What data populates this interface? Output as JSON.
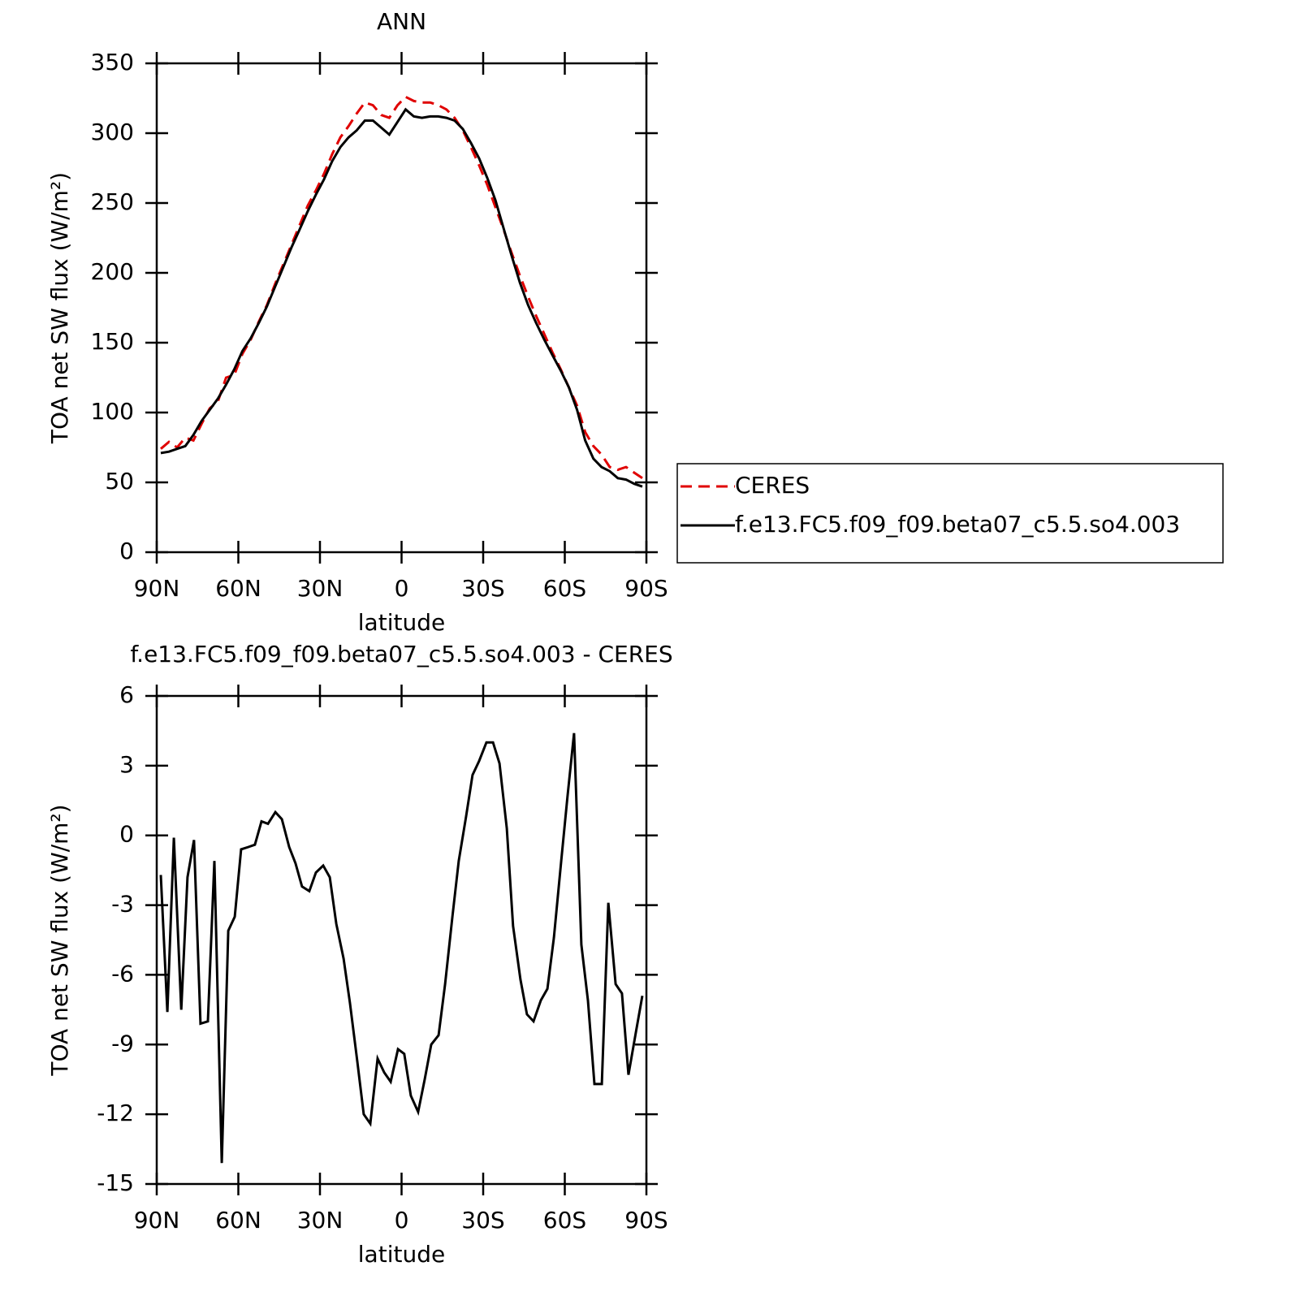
{
  "chart_data": [
    {
      "type": "line",
      "title": "ANN",
      "xlabel": "latitude",
      "ylabel": "TOA net SW flux (W/m²)",
      "xlim": [
        90,
        -90
      ],
      "xticks": [
        {
          "value": 90,
          "label": "90N"
        },
        {
          "value": 60,
          "label": "60N"
        },
        {
          "value": 30,
          "label": "30N"
        },
        0,
        {
          "value": -30,
          "label": "30S"
        },
        {
          "value": -60,
          "label": "60S"
        },
        {
          "value": -90,
          "label": "90S"
        }
      ],
      "ylim": [
        0,
        350
      ],
      "yticks": [
        0,
        50,
        100,
        150,
        200,
        250,
        300,
        350
      ],
      "legend": "right",
      "x": [
        88.5,
        85.5,
        82.5,
        79.5,
        76.5,
        73.5,
        70.5,
        67.5,
        64.5,
        61.5,
        58.5,
        55.5,
        52.5,
        49.5,
        46.5,
        43.5,
        40.5,
        37.5,
        34.5,
        31.5,
        28.5,
        25.5,
        22.5,
        19.5,
        16.5,
        13.5,
        10.5,
        7.5,
        4.5,
        1.5,
        -1.5,
        -4.5,
        -7.5,
        -10.5,
        -13.5,
        -16.5,
        -19.5,
        -22.5,
        -25.5,
        -28.5,
        -31.5,
        -34.5,
        -37.5,
        -40.5,
        -43.5,
        -46.5,
        -49.5,
        -52.5,
        -55.5,
        -58.5,
        -61.5,
        -64.5,
        -67.5,
        -70.5,
        -73.5,
        -76.5,
        -79.5,
        -82.5,
        -85.5,
        -88.5
      ],
      "series": [
        {
          "name": "CERES",
          "color": "#e00000",
          "linestyle": "dashed",
          "values": [
            74,
            79,
            75,
            82,
            80,
            92,
            103,
            108,
            125,
            127,
            142,
            152,
            165,
            177,
            192,
            206,
            220,
            234,
            248,
            259,
            271,
            285,
            297,
            305,
            314,
            322,
            320,
            313,
            311,
            320,
            326,
            323,
            322,
            322,
            320,
            317,
            311,
            302,
            290,
            277,
            263,
            247,
            231,
            214,
            198,
            183,
            169,
            156,
            143,
            131,
            118,
            105,
            86,
            76,
            70,
            61,
            59,
            61,
            57,
            53
          ]
        },
        {
          "name": "f.e13.FC5.f09_f09.beta07_c5.5.so4.003",
          "color": "#000000",
          "linestyle": "solid",
          "values": [
            71,
            72,
            74,
            76,
            84,
            94,
            102,
            110,
            120,
            131,
            144,
            153,
            164,
            176,
            190,
            204,
            218,
            231,
            244,
            256,
            267,
            280,
            290,
            297,
            302,
            309,
            309,
            304,
            299,
            308,
            317,
            312,
            311,
            312,
            312,
            311,
            309,
            303,
            293,
            282,
            268,
            252,
            232,
            212,
            193,
            177,
            164,
            152,
            141,
            130,
            118,
            102,
            80,
            67,
            61,
            58,
            53,
            52,
            49,
            47
          ]
        }
      ]
    },
    {
      "type": "line",
      "title": "f.e13.FC5.f09_f09.beta07_c5.5.so4.003 - CERES",
      "xlabel": "latitude",
      "ylabel": "TOA net SW flux (W/m²)",
      "xlim": [
        90,
        -90
      ],
      "xticks": [
        {
          "value": 90,
          "label": "90N"
        },
        {
          "value": 60,
          "label": "60N"
        },
        {
          "value": 30,
          "label": "30N"
        },
        0,
        {
          "value": -30,
          "label": "30S"
        },
        {
          "value": -60,
          "label": "60S"
        },
        {
          "value": -90,
          "label": "90S"
        }
      ],
      "ylim": [
        -15,
        6
      ],
      "yticks": [
        -15,
        -12,
        -9,
        -6,
        -3,
        0,
        3,
        6
      ],
      "x": [
        88.5,
        86.1,
        83.7,
        81,
        78.7,
        76.3,
        73.9,
        71.2,
        68.8,
        66.1,
        63.7,
        61.3,
        59,
        56.3,
        53.9,
        51.5,
        49.1,
        46.4,
        44,
        41.3,
        39,
        36.6,
        33.9,
        31.5,
        28.8,
        26.4,
        24,
        21.3,
        19,
        16.3,
        13.9,
        11.5,
        8.8,
        6.4,
        4,
        1.3,
        -1,
        -3.4,
        -6.1,
        -8.5,
        -10.9,
        -13.6,
        -16,
        -18.7,
        -21,
        -23.7,
        -26.1,
        -28.5,
        -31.2,
        -33.6,
        -36,
        -38.7,
        -41,
        -43.7,
        -46.1,
        -48.5,
        -51.2,
        -53.6,
        -56,
        -58.7,
        -61,
        -63.4,
        -66.1,
        -68.5,
        -70.9,
        -73.6,
        -76,
        -78.7,
        -81,
        -83.4,
        -86.1,
        -88.5
      ],
      "series": [
        {
          "name": "f.e13.FC5.f09_f09.beta07_c5.5.so4.003 - CERES",
          "color": "#000000",
          "linestyle": "solid",
          "values": [
            -1.7,
            -7.6,
            -0.1,
            -7.5,
            -1.8,
            -0.2,
            -8.1,
            -8,
            -1.1,
            -14.1,
            -4.1,
            -3.5,
            -0.6,
            -0.5,
            -0.4,
            0.6,
            0.5,
            1.0,
            0.7,
            -0.5,
            -1.2,
            -2.2,
            -2.4,
            -1.6,
            -1.3,
            -1.8,
            -3.8,
            -5.3,
            -7.2,
            -9.7,
            -12.0,
            -12.4,
            -9.6,
            -10.2,
            -10.6,
            -9.2,
            -9.4,
            -11.2,
            -11.9,
            -10.5,
            -9.0,
            -8.6,
            -6.4,
            -3.5,
            -1.1,
            0.8,
            2.6,
            3.2,
            4.0,
            4.0,
            3.1,
            0.3,
            -3.9,
            -6.2,
            -7.7,
            -8.0,
            -7.1,
            -6.6,
            -4.4,
            -1.1,
            1.7,
            4.4,
            -4.7,
            -7.1,
            -10.7,
            -10.7,
            -2.9,
            -6.4,
            -6.8,
            -10.3,
            -8.5,
            -6.9
          ]
        }
      ]
    }
  ]
}
